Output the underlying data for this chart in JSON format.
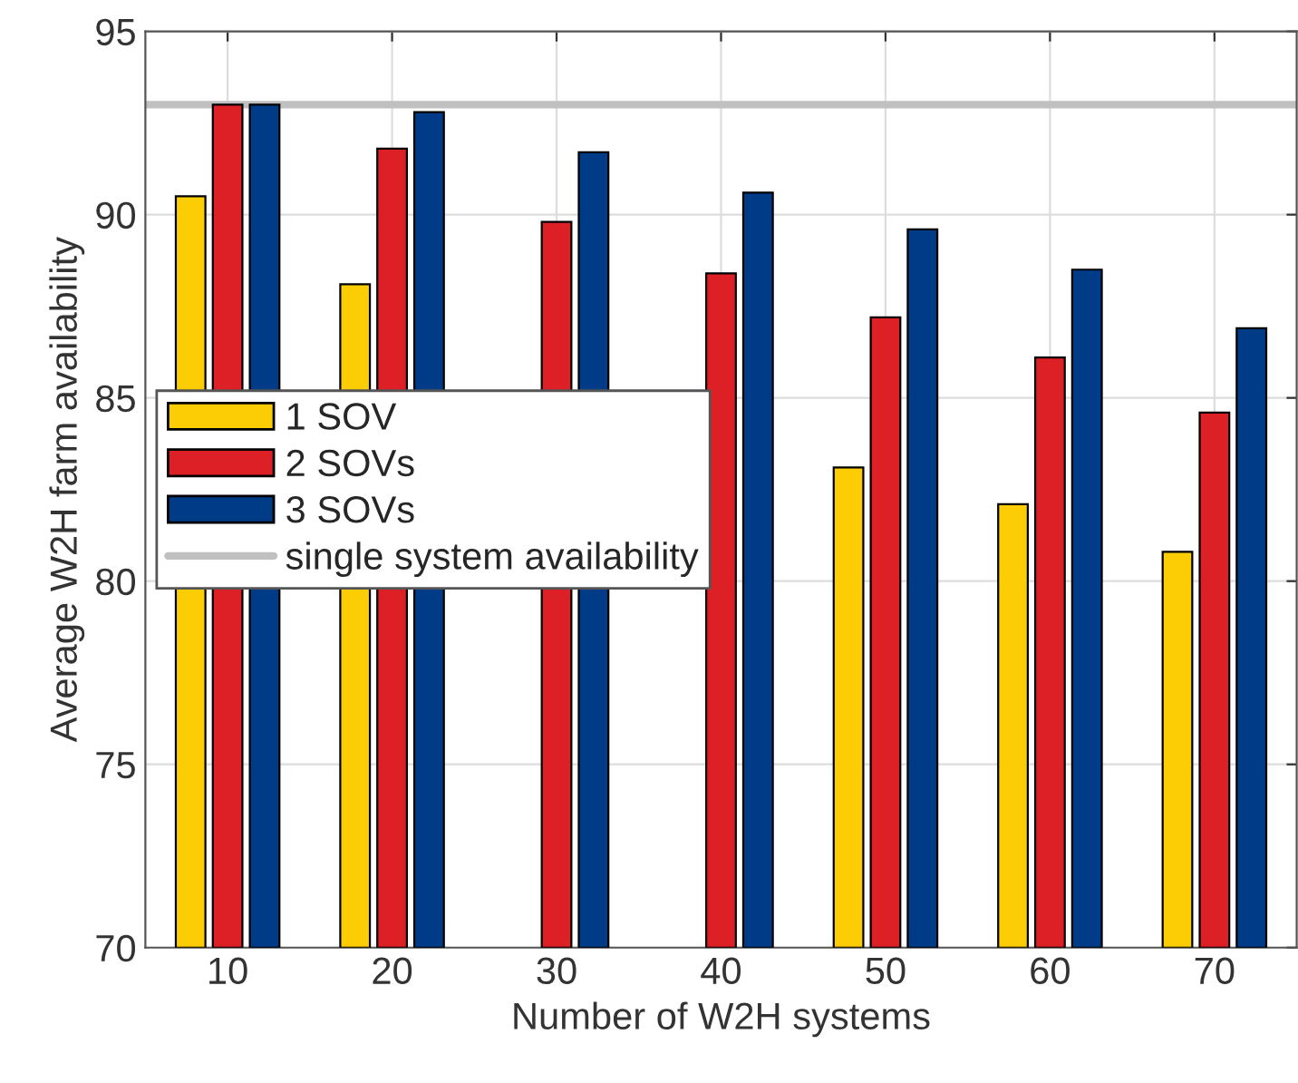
{
  "chart_data": {
    "type": "bar",
    "xlabel": "Number of W2H systems",
    "ylabel": "Average W2H farm availability",
    "categories": [
      "10",
      "20",
      "30",
      "40",
      "50",
      "60",
      "70"
    ],
    "series": [
      {
        "name": "1 SOV",
        "color": "#fccd05",
        "values": [
          90.5,
          88.1,
          null,
          null,
          83.1,
          82.1,
          80.8
        ]
      },
      {
        "name": "2 SOVs",
        "color": "#dd1f26",
        "values": [
          93.0,
          91.8,
          89.8,
          88.4,
          87.2,
          86.1,
          84.6
        ]
      },
      {
        "name": "3 SOVs",
        "color": "#003b87",
        "values": [
          93.0,
          92.8,
          91.7,
          90.6,
          89.6,
          88.5,
          86.9
        ]
      }
    ],
    "ref_lines": [
      {
        "axis": "y",
        "value": 93,
        "label": "single system availability",
        "color": "#c0c0c0"
      }
    ],
    "ylim": [
      70,
      95
    ],
    "yticks": [
      70,
      75,
      80,
      85,
      90,
      95
    ],
    "grid": true,
    "legend": "center left"
  }
}
